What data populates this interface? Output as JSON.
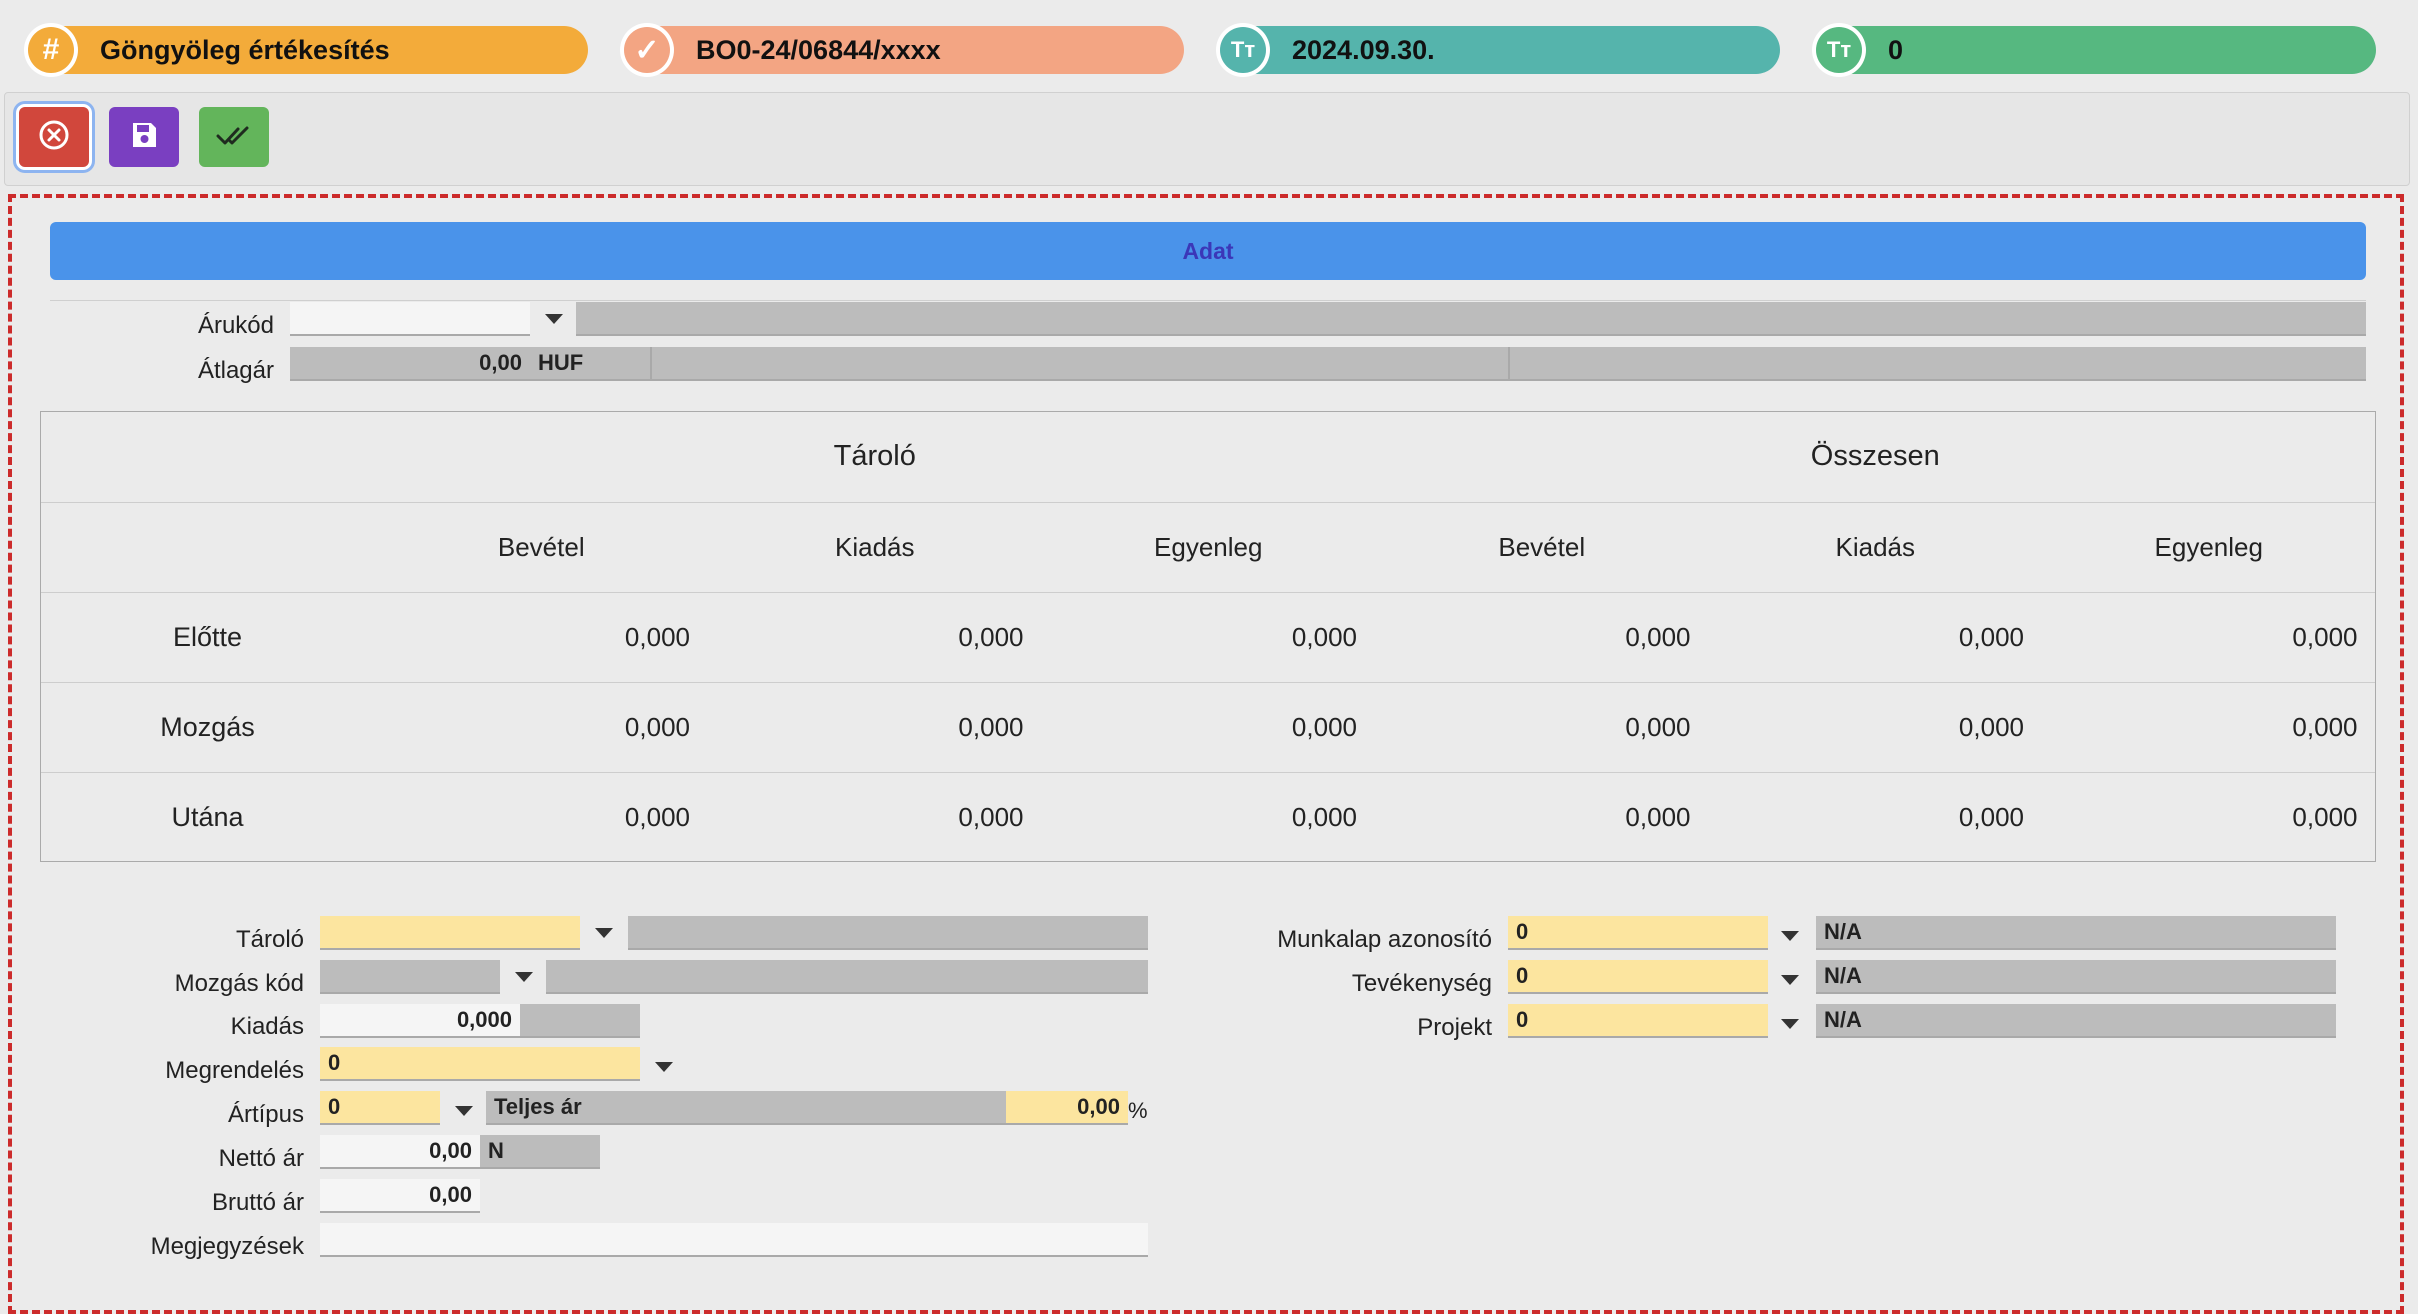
{
  "header": {
    "pills": [
      {
        "icon": "hash-icon",
        "glyph": "#",
        "text": "Göngyöleg értékesítés",
        "bg": "#f3ab3a",
        "icon_color": "#f3ab3a"
      },
      {
        "icon": "badge-check-icon",
        "glyph": "✓",
        "text": "BO0-24/06844/xxxx",
        "bg": "#f3a583",
        "icon_color": "#f3a583"
      },
      {
        "icon": "text-type-icon",
        "glyph": "Tт",
        "text": "2024.09.30.",
        "bg": "#55b4ac",
        "icon_color": "#55b4ac"
      },
      {
        "icon": "text-type-icon",
        "glyph": "Tт",
        "text": "0",
        "bg": "#56b880",
        "icon_color": "#56b880"
      }
    ]
  },
  "toolbar": {
    "buttons": [
      {
        "name": "cancel-button",
        "icon": "close-circle-icon",
        "color": "#d1473c"
      },
      {
        "name": "save-button",
        "icon": "floppy-disk-icon",
        "color": "#7a3fc1"
      },
      {
        "name": "approve-button",
        "icon": "double-check-icon",
        "color": "#63b55b"
      }
    ]
  },
  "section_title": "Adat",
  "item": {
    "arukod_label": "Árukód",
    "arukod_value": "",
    "arukod_name": "",
    "atlagar_label": "Átlagár",
    "atlagar_value": "0,00",
    "atlagar_currency": "HUF"
  },
  "grid": {
    "group_headers": [
      "Tároló",
      "Összesen"
    ],
    "col_headers": [
      "Bevétel",
      "Kiadás",
      "Egyenleg",
      "Bevétel",
      "Kiadás",
      "Egyenleg"
    ],
    "rows": [
      {
        "label": "Előtte",
        "values": [
          "0,000",
          "0,000",
          "0,000",
          "0,000",
          "0,000",
          "0,000"
        ]
      },
      {
        "label": "Mozgás",
        "values": [
          "0,000",
          "0,000",
          "0,000",
          "0,000",
          "0,000",
          "0,000"
        ]
      },
      {
        "label": "Utána",
        "values": [
          "0,000",
          "0,000",
          "0,000",
          "0,000",
          "0,000",
          "0,000"
        ]
      }
    ]
  },
  "form_left": {
    "tarolo_label": "Tároló",
    "tarolo_value": "",
    "tarolo_name": "",
    "mozgas_label": "Mozgás kód",
    "mozgas_value": "",
    "mozgas_name": "",
    "kiadas_label": "Kiadás",
    "kiadas_value": "0,000",
    "megrendeles_label": "Megrendelés",
    "megrendeles_value": "0",
    "artipus_label": "Ártípus",
    "artipus_value": "0",
    "artipus_name": "Teljes ár",
    "artipus_pct": "0,00",
    "pct_sign": "%",
    "netto_label": "Nettó ár",
    "netto_value": "0,00",
    "netto_unit": "N",
    "brutto_label": "Bruttó ár",
    "brutto_value": "0,00",
    "megjegyzes_label": "Megjegyzések",
    "megjegyzes_value": ""
  },
  "form_right": {
    "munkalap_label": "Munkalap azonosító",
    "munkalap_value": "0",
    "munkalap_name": "N/A",
    "tevekenyseg_label": "Tevékenység",
    "tevekenyseg_value": "0",
    "tevekenyseg_name": "N/A",
    "projekt_label": "Projekt",
    "projekt_value": "0",
    "projekt_name": "N/A"
  }
}
